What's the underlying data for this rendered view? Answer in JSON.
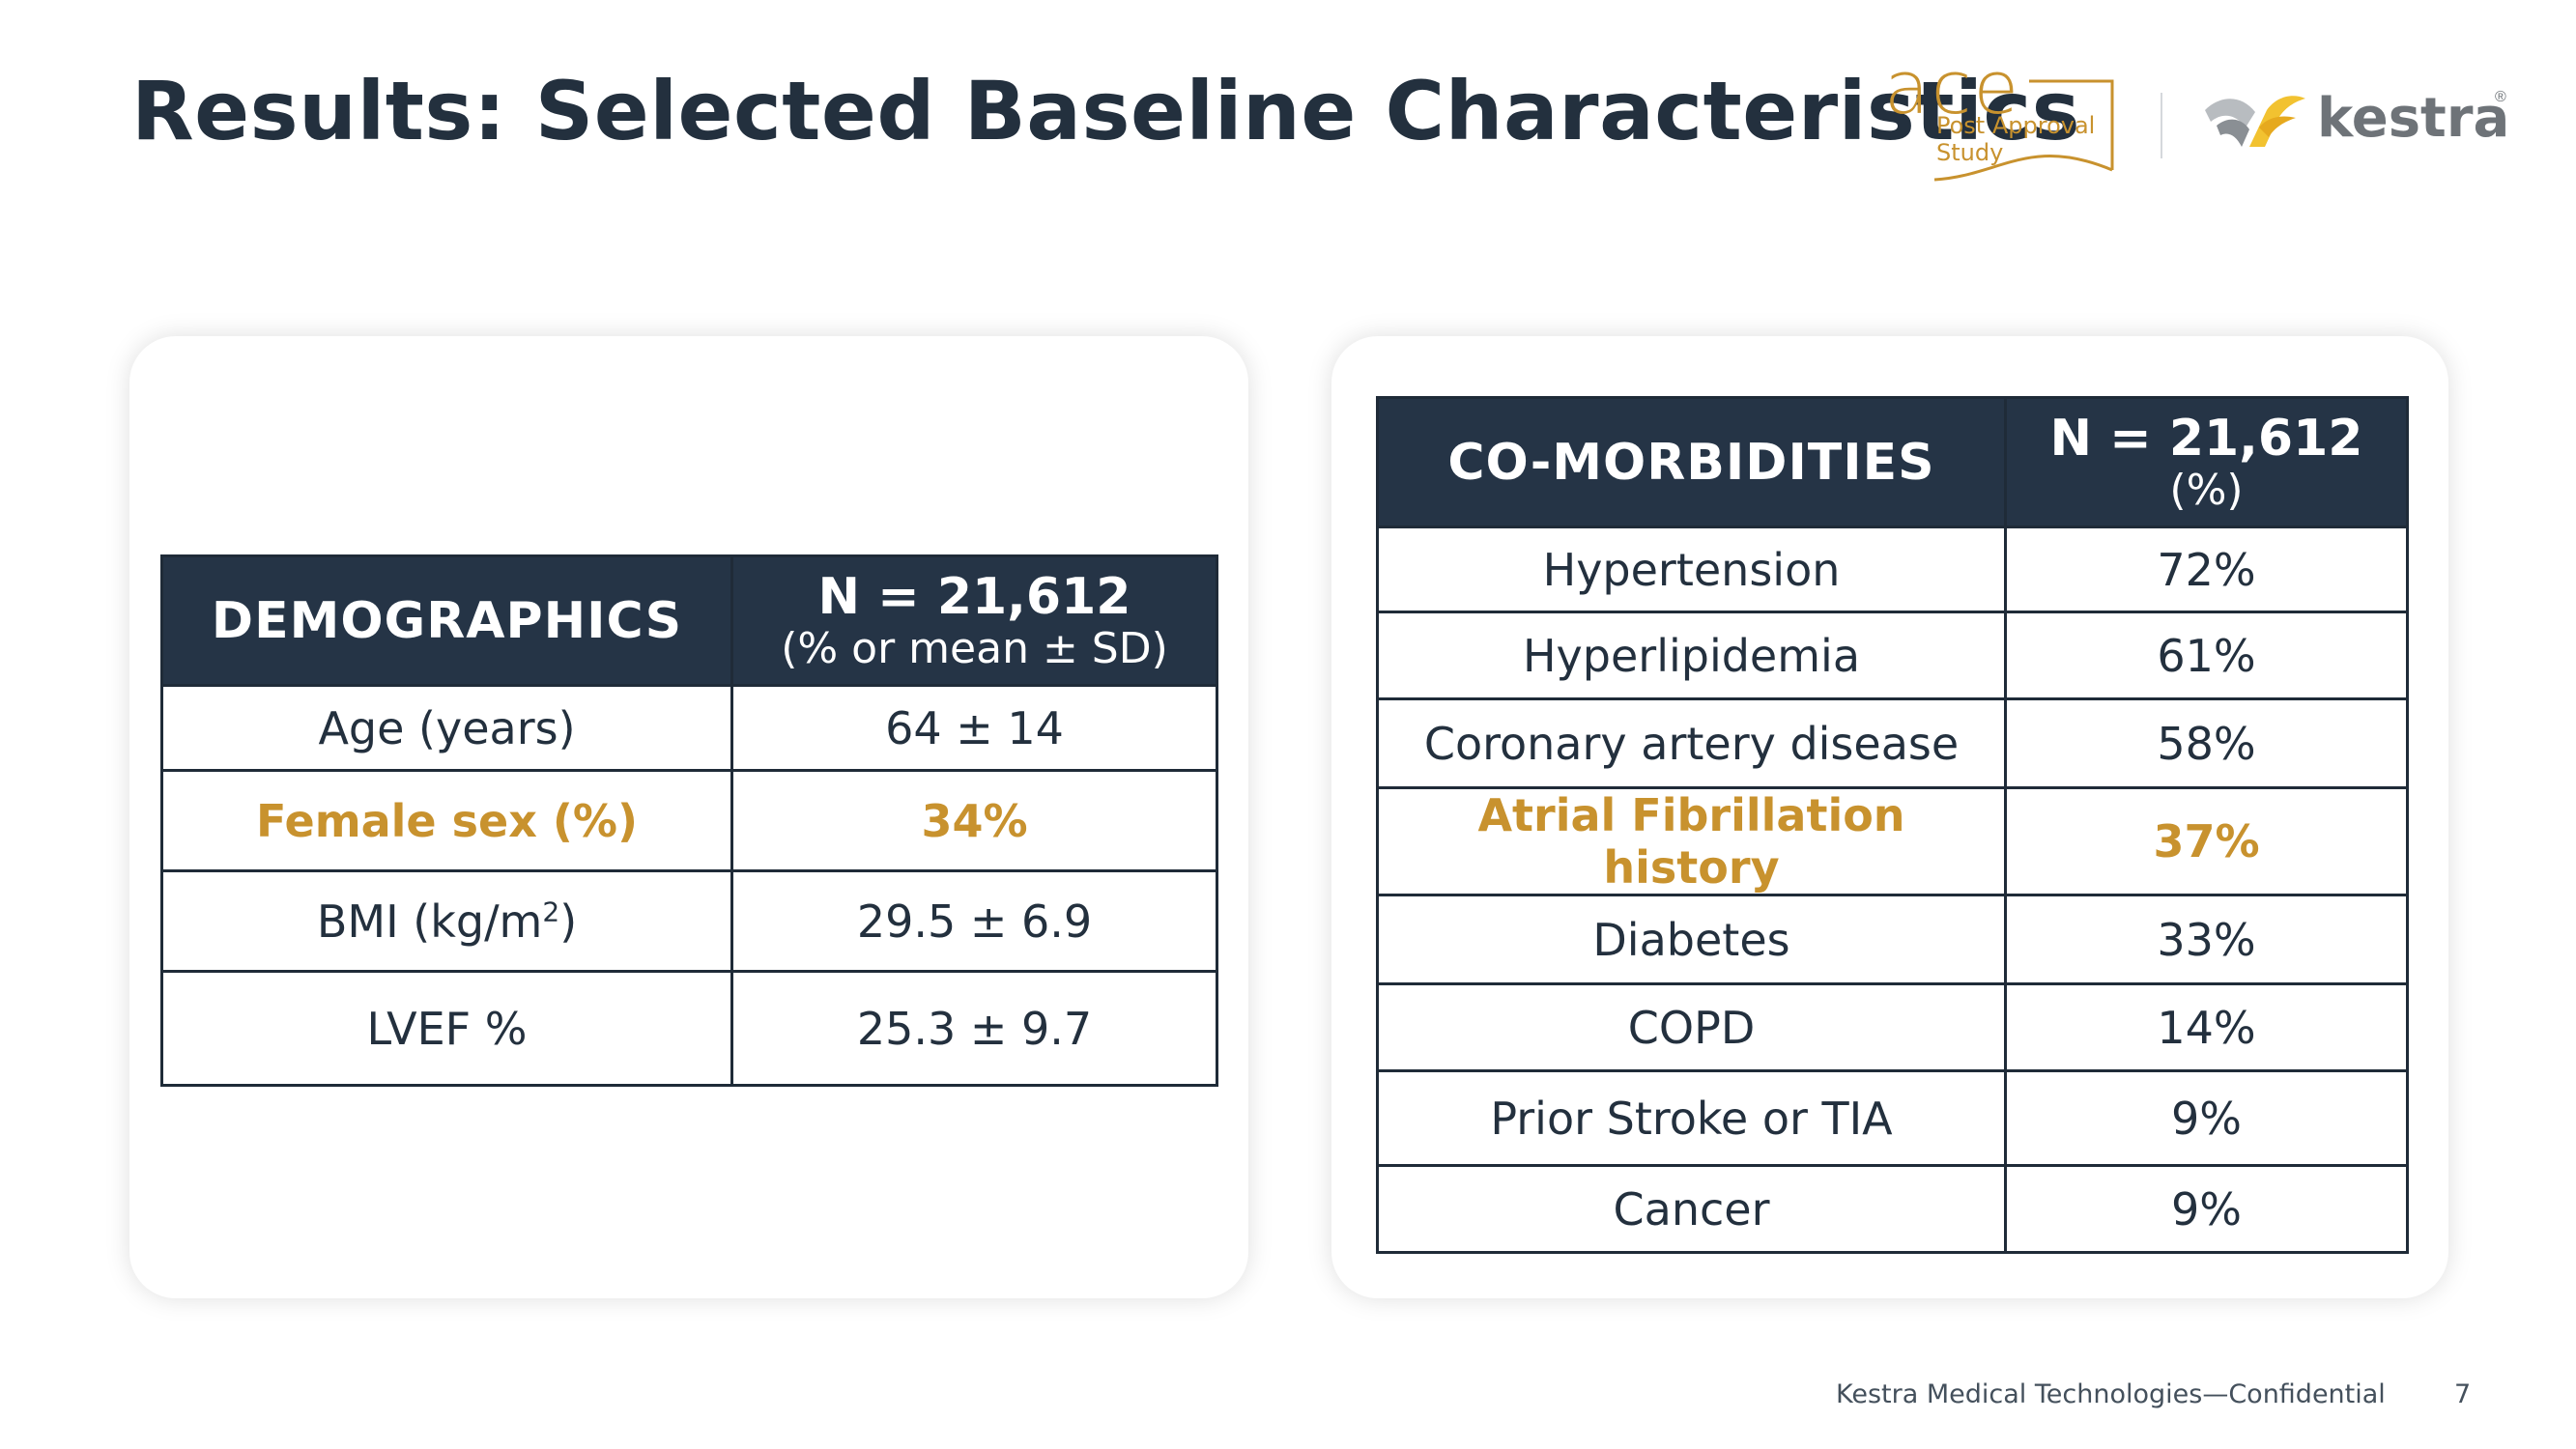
{
  "header": {
    "title": "Results: Selected Baseline Characteristics"
  },
  "logos": {
    "ace": {
      "word": "ace",
      "line1": "Post Approval",
      "line2": "Study"
    },
    "kestra": {
      "word": "kestra",
      "registered": "®"
    }
  },
  "demographics": {
    "header_label": "DEMOGRAPHICS",
    "header_n": "N = 21,612",
    "header_note": "(% or mean ± SD)",
    "rows": [
      {
        "label": "Age (years)",
        "value": "64 ± 14",
        "highlight": false
      },
      {
        "label": "Female sex (%)",
        "value": "34%",
        "highlight": true
      },
      {
        "label_base": "BMI (kg/m",
        "label_sup": "2",
        "label_end": ")",
        "value": "29.5 ± 6.9",
        "highlight": false
      },
      {
        "label": "LVEF %",
        "value": "25.3 ± 9.7",
        "highlight": false
      }
    ]
  },
  "comorbidities": {
    "header_label": "CO-MORBIDITIES",
    "header_n": "N = 21,612",
    "header_note": "(%)",
    "rows": [
      {
        "label": "Hypertension",
        "value": "72%",
        "highlight": false
      },
      {
        "label": "Hyperlipidemia",
        "value": "61%",
        "highlight": false
      },
      {
        "label": "Coronary artery disease",
        "value": "58%",
        "highlight": false
      },
      {
        "label": "Atrial Fibrillation history",
        "value": "37%",
        "highlight": true
      },
      {
        "label": "Diabetes",
        "value": "33%",
        "highlight": false
      },
      {
        "label": "COPD",
        "value": "14%",
        "highlight": false
      },
      {
        "label": "Prior Stroke or TIA",
        "value": "9%",
        "highlight": false
      },
      {
        "label": "Cancer",
        "value": "9%",
        "highlight": false
      }
    ]
  },
  "footer": {
    "text": "Kestra Medical Technologies—Confidential",
    "page_number": "7"
  },
  "colors": {
    "navy": "#253446",
    "gold": "#c8922e",
    "gray": "#6e7378",
    "text": "#23303e"
  }
}
